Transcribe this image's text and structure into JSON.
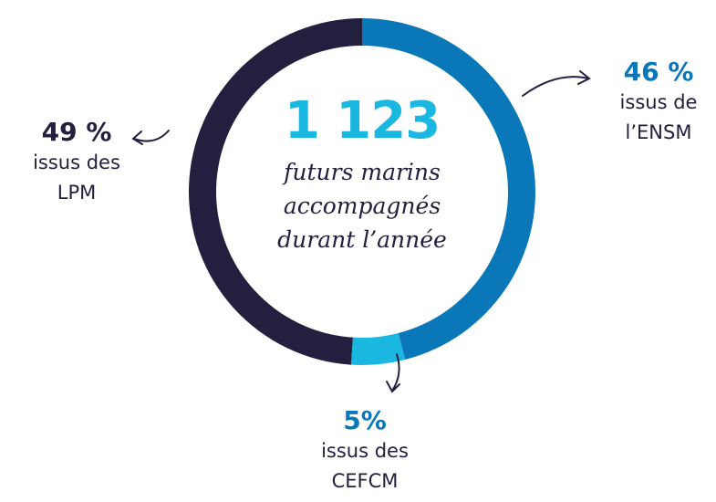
{
  "chart_data": {
    "type": "donut",
    "center_title": "1 123",
    "center_subtitle": "futurs marins accompagnés durant l’année",
    "categories": [
      "issus de l’ENSM",
      "issus des CEFCM",
      "issus des LPM"
    ],
    "values": [
      46,
      5,
      49
    ],
    "value_labels": [
      "46 %",
      "5%",
      "49 %"
    ],
    "colors": [
      "#0a77b8",
      "#1ab8e0",
      "#23203f"
    ]
  }
}
